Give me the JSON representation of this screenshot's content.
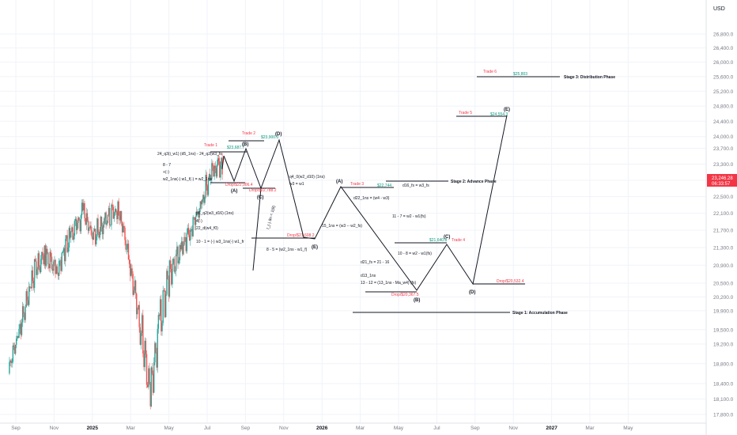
{
  "currency": "USD",
  "price_badge": {
    "price": "23,246.28",
    "timer": "06:33:57",
    "color": "#f23645"
  },
  "colors": {
    "up": "#26a69a",
    "down": "#ef5350",
    "green_text": "#089981",
    "red_text": "#f23645",
    "axis_text": "#787b86",
    "line": "#131722"
  },
  "y_ticks": [
    26800,
    26400,
    26000,
    25600,
    25200,
    24800,
    24400,
    24000,
    23700,
    23300,
    22900,
    22500,
    22100,
    21700,
    21300,
    20900,
    20500,
    20200,
    19900,
    19500,
    19200,
    18800,
    18400,
    18100,
    17800
  ],
  "y_tick_labels": [
    "26,800.0",
    "26,400.0",
    "26,000.0",
    "25,600.0",
    "25,200.0",
    "24,800.0",
    "24,400.0",
    "24,000.0",
    "23,700.0",
    "23,300.0",
    "22,900.0",
    "22,500.0",
    "22,100.0",
    "21,700.0",
    "21,300.0",
    "20,900.0",
    "20,500.0",
    "20,200.0",
    "19,900.0",
    "19,500.0",
    "19,200.0",
    "18,800.0",
    "18,400.0",
    "18,100.0",
    "17,800.0"
  ],
  "x_ticks": [
    "Sep",
    "Nov",
    "2025",
    "Mar",
    "May",
    "Jul",
    "Sep",
    "Nov",
    "2026",
    "Mar",
    "May",
    "Jul",
    "Sep",
    "Nov",
    "2027",
    "Mar",
    "May"
  ],
  "chart_data": {
    "type": "candlestick-with-projection",
    "y_range": [
      17660,
      27380
    ],
    "y_scale": "log",
    "candles_overview": [
      [
        "2024-08-20",
        18600,
        18950,
        18400,
        18800
      ],
      [
        "2024-09-05",
        18800,
        19500,
        18600,
        19400
      ],
      [
        "2024-09-25",
        19400,
        20700,
        19300,
        20600
      ],
      [
        "2024-10-15",
        20600,
        21300,
        20400,
        21200
      ],
      [
        "2024-11-05",
        21200,
        21500,
        20500,
        20800
      ],
      [
        "2024-11-25",
        20800,
        21800,
        20700,
        21600
      ],
      [
        "2024-12-15",
        21600,
        22300,
        21400,
        22100
      ],
      [
        "2025-01-02",
        22100,
        22300,
        21300,
        21600
      ],
      [
        "2025-01-20",
        21600,
        22200,
        21200,
        21900
      ],
      [
        "2025-02-10",
        21900,
        22500,
        21700,
        22200
      ],
      [
        "2025-02-28",
        22200,
        22250,
        20900,
        21000
      ],
      [
        "2025-03-15",
        21000,
        21400,
        19300,
        19600
      ],
      [
        "2025-04-01",
        19600,
        19900,
        17700,
        18200
      ],
      [
        "2025-04-15",
        18200,
        19800,
        17600,
        19600
      ],
      [
        "2025-05-01",
        19600,
        20900,
        19400,
        20700
      ],
      [
        "2025-05-20",
        20700,
        21400,
        20500,
        21300
      ],
      [
        "2025-06-05",
        21300,
        21800,
        21100,
        21700
      ],
      [
        "2025-06-25",
        21700,
        22700,
        21600,
        22600
      ],
      [
        "2025-07-10",
        22600,
        23300,
        22400,
        23200
      ],
      [
        "2025-07-25",
        23200,
        23400,
        22900,
        23246
      ]
    ],
    "wave_points": [
      {
        "label": "(A)",
        "date": "2025-08-12",
        "price": 22960
      },
      {
        "label": "(B)",
        "date": "2025-08-28",
        "price": 23850
      },
      {
        "label": "(C)",
        "date": "2025-09-15",
        "price": 22790
      },
      {
        "label": "(D)",
        "date": "2025-10-30",
        "price": 24060
      },
      {
        "label": "(E)",
        "date": "2025-12-20",
        "price": 21625
      },
      {
        "label": "(A)",
        "date": "2026-02-15",
        "price": 23000
      },
      {
        "label": "(B)",
        "date": "2026-06-15",
        "price": 20400
      },
      {
        "label": "(C)",
        "date": "2026-07-28",
        "price": 21620
      },
      {
        "label": "(D)",
        "date": "2026-09-22",
        "price": 20800
      },
      {
        "label": "(E)",
        "date": "2026-11-18",
        "price": 24600
      }
    ],
    "levels": [
      {
        "name": "Trade 1",
        "price": 23720,
        "value": "$23,687.7"
      },
      {
        "name": "Trade 2",
        "price": 23980,
        "value": "$23,900.0"
      },
      {
        "name": "Trade 3",
        "price": 23040,
        "value": "$22,744"
      },
      {
        "name": "Trade 4",
        "price": 21660,
        "value": "$21,640.8"
      },
      {
        "name": "Trade 5",
        "price": 24560,
        "value": "$24,554.3"
      },
      {
        "name": "Trade 6",
        "price": 25780,
        "value": "$25,803"
      },
      {
        "name": "Drop",
        "price": 23010,
        "value": "Drop/$22,906.4"
      },
      {
        "name": "Drop",
        "price": 22860,
        "value": "Drop/$22,788.2"
      },
      {
        "name": "Drop",
        "price": 21780,
        "value": "Drop/$21,608.2"
      },
      {
        "name": "Drop",
        "price": 20420,
        "value": "Drop/$20,367.5"
      },
      {
        "name": "Drop",
        "price": 20800,
        "value": "Drop/$20,532.4"
      }
    ],
    "stage_lines": [
      "Stage 3: Distribution Phase",
      "Stage 2: Advance Phase",
      "Stage 1: Accumulation Phase"
    ]
  },
  "labels": {
    "trade1": "Trade 1",
    "trade1_val": "$23,687.7",
    "trade2": "Trade 2",
    "trade2_val": "$23,900.0",
    "trade3": "Trade 3",
    "trade3_val": "$22,744",
    "trade4": "Trade 4",
    "trade4_val": "$21,640.8",
    "trade5": "Trade 5",
    "trade5_val": "$24,554.3",
    "trade6": "Trade 6",
    "trade6_val": "$25,803",
    "drop1": "Drop/$22,906.4",
    "drop2": "Drop/$22,788.2",
    "drop3": "Drop/$21,608.2",
    "drop4": "Drop/$20,367.5",
    "drop5": "Drop/$20,532.4",
    "stage3": "Stage 3: Distribution Phase",
    "stage2": "Stage 2: Advance Phase",
    "stage1": "Stage 1: Accumulation Phase",
    "ann1": "24_q3(i_w1) (d5_1ns) - 24_q2(w3_fs",
    "ann2": "8 - 7",
    "ann3": "+(-)",
    "ann4": "w2_1ns(-) w1_f(-) = w2_1ns",
    "ann5": "p5_q2(w3_d16) (1ns)",
    "ann6": "4(-)",
    "ann7": "22_d(w4_f0)",
    "ann8": "10 - 1 = (-) w3_1ns(-) w1_fr",
    "ann9": "q4_0(w2_d10) (1ns)",
    "ann10": "w3 = w1",
    "ann11": "8 - 5 = (w2_1ns - w1_f)",
    "ann12": "t_(-) 8n = 1(8)",
    "ann13": "15_1ns = (w3 -- w2_fs)",
    "ann14": "d22_1ns = (w4 - w3)",
    "ann15": "d16_fs = w3_fs",
    "ann16": "11 - 7 = w2 - w1(fs)",
    "ann17": "10 - 8 = w2 - w1(fs)",
    "ann18": "d21_fs = 21 - 16",
    "ann19": "d13_1ns",
    "ann20": "13 - 12 = (13_1ns - Ma_w4) (fs)",
    "wA1": "(A)",
    "wB1": "(B)",
    "wC1": "(C)",
    "wD1": "(D)",
    "wE1": "(E)",
    "wA2": "(A)",
    "wB2": "(B)",
    "wC2": "(C)",
    "wD2": "(D)",
    "wE2": "(E)"
  }
}
